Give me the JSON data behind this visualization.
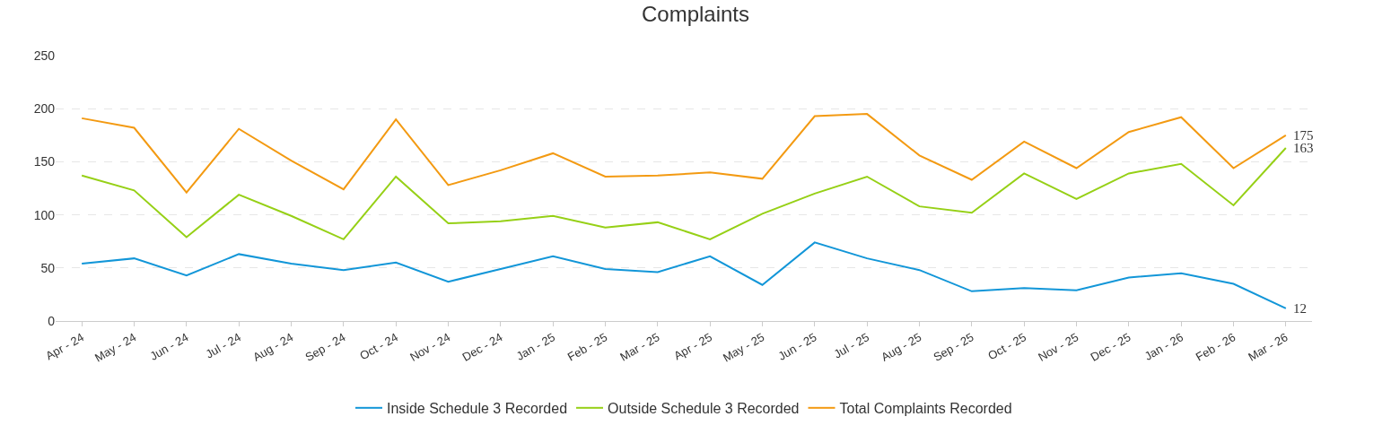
{
  "chart_data": {
    "type": "line",
    "title": "Complaints",
    "categories": [
      "Apr - 24",
      "May - 24",
      "Jun - 24",
      "Jul - 24",
      "Aug - 24",
      "Sep - 24",
      "Oct - 24",
      "Nov - 24",
      "Dec - 24",
      "Jan - 25",
      "Feb - 25",
      "Mar - 25",
      "Apr - 25",
      "May - 25",
      "Jun - 25",
      "Jul - 25",
      "Aug - 25",
      "Sep - 25",
      "Oct - 25",
      "Nov - 25",
      "Dec - 25",
      "Jan - 26",
      "Feb - 26",
      "Mar - 26"
    ],
    "series": [
      {
        "name": "Inside Schedule 3 Recorded",
        "color": "#1296d8",
        "values": [
          54,
          59,
          43,
          63,
          54,
          48,
          55,
          37,
          49,
          61,
          49,
          46,
          61,
          34,
          74,
          59,
          48,
          28,
          31,
          29,
          41,
          45,
          35,
          12
        ],
        "value_labels": [
          null,
          null,
          null,
          null,
          null,
          null,
          null,
          null,
          null,
          null,
          null,
          null,
          null,
          null,
          null,
          null,
          null,
          null,
          null,
          null,
          null,
          null,
          null,
          "12"
        ]
      },
      {
        "name": "Outside Schedule 3 Recorded",
        "color": "#96d016",
        "values": [
          137,
          123,
          79,
          119,
          99,
          77,
          136,
          92,
          94,
          99,
          88,
          93,
          77,
          101,
          120,
          136,
          108,
          102,
          139,
          115,
          139,
          148,
          109,
          163
        ],
        "value_labels": [
          null,
          null,
          null,
          null,
          null,
          null,
          null,
          null,
          null,
          null,
          null,
          null,
          null,
          null,
          null,
          null,
          null,
          null,
          null,
          null,
          null,
          null,
          null,
          "163"
        ]
      },
      {
        "name": "Total Complaints Recorded",
        "color": "#f39a12",
        "values": [
          191,
          182,
          121,
          181,
          151,
          124,
          190,
          128,
          142,
          158,
          136,
          137,
          140,
          134,
          193,
          195,
          156,
          133,
          169,
          144,
          178,
          192,
          144,
          175
        ],
        "value_labels": [
          null,
          null,
          null,
          null,
          null,
          null,
          null,
          null,
          null,
          null,
          null,
          null,
          null,
          null,
          null,
          null,
          null,
          null,
          null,
          null,
          null,
          null,
          null,
          "175"
        ]
      }
    ],
    "ylim": [
      0,
      250
    ],
    "yticks": [
      0,
      50,
      100,
      150,
      200,
      250
    ],
    "grid": "y",
    "legend": "bottom",
    "marker": "none",
    "line_style": "solid"
  }
}
